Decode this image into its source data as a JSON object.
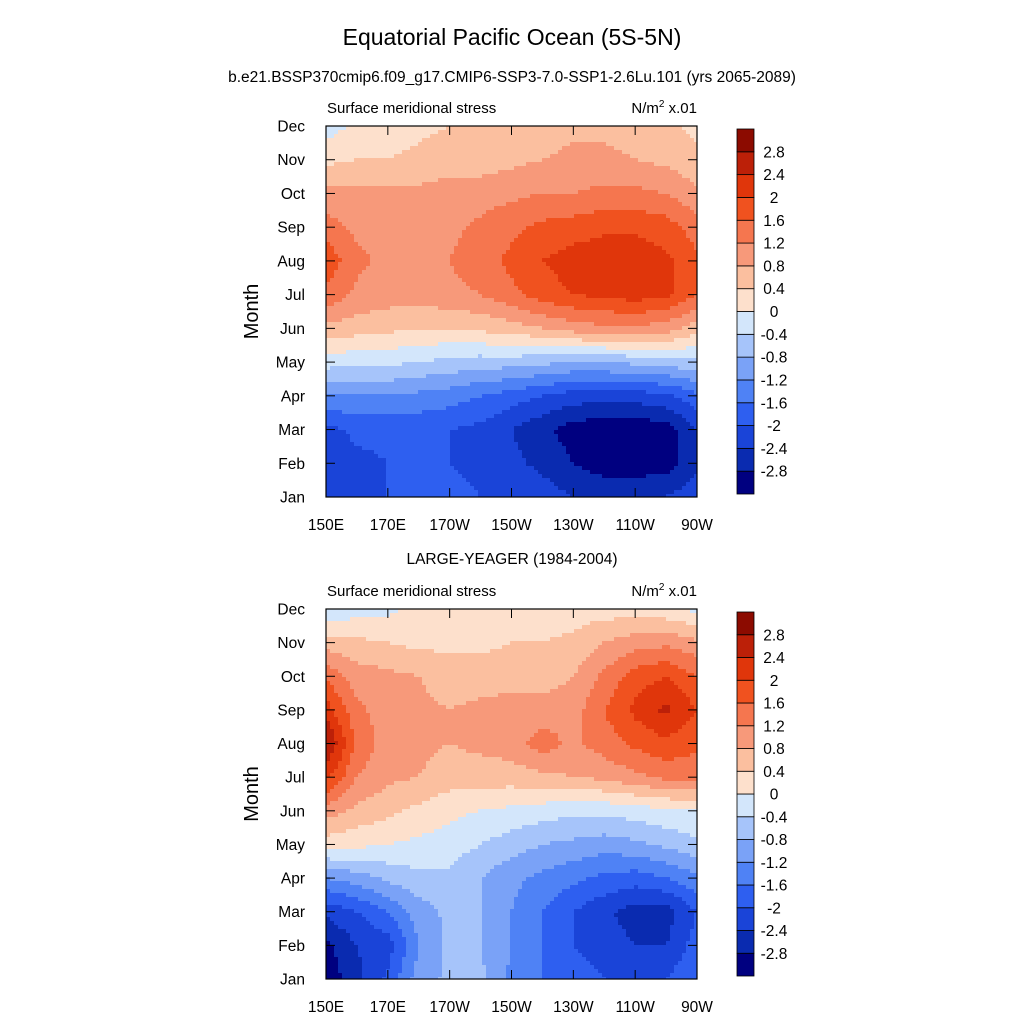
{
  "figure": {
    "title": "Equatorial Pacific Ocean (5S-5N)"
  },
  "colorbar": {
    "colors": [
      "#000080",
      "#0a2bb0",
      "#1a44d8",
      "#2e5ff0",
      "#4f82f5",
      "#7aa2f7",
      "#a6c4fa",
      "#d3e6fb",
      "#fde0cc",
      "#fbbf9f",
      "#f7997a",
      "#f5764f",
      "#f0521f",
      "#e0360b",
      "#bc2008",
      "#8c0b00"
    ],
    "levels": [
      "-2.8",
      "-2.4",
      "-2",
      "-1.6",
      "-1.2",
      "-0.8",
      "-0.4",
      "0",
      "0.4",
      "0.8",
      "1.2",
      "1.6",
      "2",
      "2.4",
      "2.8"
    ]
  },
  "chart_data": [
    {
      "type": "heatmap",
      "title": "b.e21.BSSP370cmip6.f09_g17.CMIP6-SSP3-7.0-SSP1-2.6Lu.101 (yrs 2065-2089)",
      "left_label": "Surface meridional stress",
      "units_prefix": "N/m",
      "units_sup": "2",
      "units_suffix": " x.01",
      "ylabel": "Month",
      "x_ticks": [
        "150E",
        "170E",
        "170W",
        "150W",
        "130W",
        "110W",
        "90W"
      ],
      "y_ticks": [
        "Jan",
        "Feb",
        "Mar",
        "Apr",
        "May",
        "Jun",
        "Jul",
        "Aug",
        "Sep",
        "Oct",
        "Nov",
        "Dec"
      ],
      "x": [
        150,
        160,
        170,
        180,
        190,
        200,
        210,
        220,
        230,
        240,
        250,
        260,
        270
      ],
      "months": [
        1,
        2,
        3,
        4,
        5,
        6,
        7,
        8,
        9,
        10,
        11,
        12
      ],
      "values": [
        [
          -2.0,
          -2.0,
          -2.0,
          -2.0,
          -1.9,
          -2.0,
          -2.1,
          -2.2,
          -2.4,
          -2.5,
          -2.5,
          -2.4,
          -2.1
        ],
        [
          -2.4,
          -2.1,
          -2.0,
          -2.0,
          -2.0,
          -2.1,
          -2.3,
          -2.5,
          -2.8,
          -3.0,
          -3.0,
          -3.0,
          -2.5
        ],
        [
          -2.1,
          -1.9,
          -1.9,
          -1.9,
          -2.0,
          -2.1,
          -2.4,
          -2.7,
          -3.0,
          -3.1,
          -3.1,
          -3.0,
          -2.4
        ],
        [
          -1.3,
          -1.2,
          -1.2,
          -1.3,
          -1.4,
          -1.6,
          -1.8,
          -2.0,
          -2.2,
          -2.2,
          -2.2,
          -2.1,
          -1.7
        ],
        [
          -0.2,
          -0.3,
          -0.3,
          -0.4,
          -0.5,
          -0.6,
          -0.6,
          -0.7,
          -0.8,
          -0.8,
          -0.7,
          -0.6,
          -0.5
        ],
        [
          0.7,
          0.6,
          0.5,
          0.4,
          0.4,
          0.5,
          0.6,
          0.8,
          1.0,
          1.1,
          1.1,
          1.0,
          0.6
        ],
        [
          1.5,
          1.1,
          1.0,
          1.0,
          1.1,
          1.2,
          1.5,
          1.8,
          2.0,
          2.1,
          2.2,
          2.1,
          1.6
        ],
        [
          1.9,
          1.3,
          1.1,
          1.1,
          1.2,
          1.4,
          1.7,
          2.0,
          2.2,
          2.3,
          2.3,
          2.1,
          1.7
        ],
        [
          1.4,
          1.1,
          1.0,
          1.0,
          1.1,
          1.3,
          1.5,
          1.7,
          1.8,
          1.9,
          1.9,
          1.8,
          1.4
        ],
        [
          0.9,
          0.9,
          0.9,
          0.9,
          1.0,
          1.0,
          1.1,
          1.2,
          1.2,
          1.3,
          1.3,
          1.2,
          0.9
        ],
        [
          0.3,
          0.4,
          0.4,
          0.5,
          0.6,
          0.6,
          0.7,
          0.8,
          0.9,
          0.9,
          0.8,
          0.7,
          0.5
        ],
        [
          -0.2,
          0.1,
          0.2,
          0.3,
          0.4,
          0.4,
          0.5,
          0.6,
          0.7,
          0.7,
          0.6,
          0.5,
          0.3
        ]
      ]
    },
    {
      "type": "heatmap",
      "title": "LARGE-YEAGER (1984-2004)",
      "left_label": "Surface meridional stress",
      "units_prefix": "N/m",
      "units_sup": "2",
      "units_suffix": " x.01",
      "ylabel": "Month",
      "x_ticks": [
        "150E",
        "170E",
        "170W",
        "150W",
        "130W",
        "110W",
        "90W"
      ],
      "y_ticks": [
        "Jan",
        "Feb",
        "Mar",
        "Apr",
        "May",
        "Jun",
        "Jul",
        "Aug",
        "Sep",
        "Oct",
        "Nov",
        "Dec"
      ],
      "x": [
        150,
        160,
        170,
        180,
        190,
        200,
        210,
        220,
        230,
        240,
        250,
        260,
        270
      ],
      "months": [
        1,
        2,
        3,
        4,
        5,
        6,
        7,
        8,
        9,
        10,
        11,
        12
      ],
      "values": [
        [
          -3.1,
          -2.5,
          -1.9,
          -1.0,
          -0.7,
          -0.7,
          -1.3,
          -1.6,
          -1.8,
          -2.0,
          -2.1,
          -2.0,
          -1.6
        ],
        [
          -2.9,
          -2.4,
          -2.2,
          -1.2,
          -0.7,
          -0.8,
          -1.2,
          -1.6,
          -2.0,
          -2.2,
          -2.4,
          -2.4,
          -1.8
        ],
        [
          -2.3,
          -2.0,
          -1.6,
          -1.0,
          -0.7,
          -0.8,
          -1.2,
          -1.6,
          -2.0,
          -2.3,
          -2.6,
          -2.6,
          -2.0
        ],
        [
          -1.2,
          -1.0,
          -0.7,
          -0.5,
          -0.5,
          -0.8,
          -1.1,
          -1.3,
          -1.5,
          -1.7,
          -1.8,
          -1.6,
          -1.3
        ],
        [
          0.2,
          0.1,
          0.0,
          -0.1,
          -0.2,
          -0.4,
          -0.6,
          -0.8,
          -0.9,
          -1.0,
          -0.9,
          -0.7,
          -0.5
        ],
        [
          1.0,
          0.7,
          0.5,
          0.3,
          0.1,
          0.0,
          -0.1,
          -0.2,
          -0.3,
          -0.3,
          -0.2,
          -0.1,
          0.0
        ],
        [
          2.1,
          1.2,
          0.9,
          0.8,
          0.6,
          0.6,
          0.6,
          0.7,
          0.8,
          0.9,
          1.1,
          1.3,
          1.3
        ],
        [
          2.9,
          1.5,
          1.0,
          0.9,
          0.8,
          0.9,
          1.0,
          1.4,
          1.1,
          1.4,
          1.7,
          1.9,
          1.7
        ],
        [
          2.2,
          1.3,
          1.0,
          0.9,
          0.8,
          0.9,
          1.0,
          1.0,
          1.0,
          1.6,
          2.1,
          2.5,
          2.0
        ],
        [
          1.5,
          1.0,
          0.9,
          0.8,
          0.6,
          0.6,
          0.6,
          0.6,
          0.8,
          1.3,
          1.8,
          2.0,
          1.6
        ],
        [
          0.6,
          0.5,
          0.4,
          0.3,
          0.3,
          0.3,
          0.4,
          0.4,
          0.5,
          0.8,
          1.0,
          1.1,
          0.9
        ],
        [
          -0.3,
          -0.2,
          -0.1,
          0.1,
          0.1,
          0.1,
          0.1,
          0.2,
          0.2,
          0.2,
          0.2,
          0.1,
          -0.1
        ]
      ]
    }
  ]
}
